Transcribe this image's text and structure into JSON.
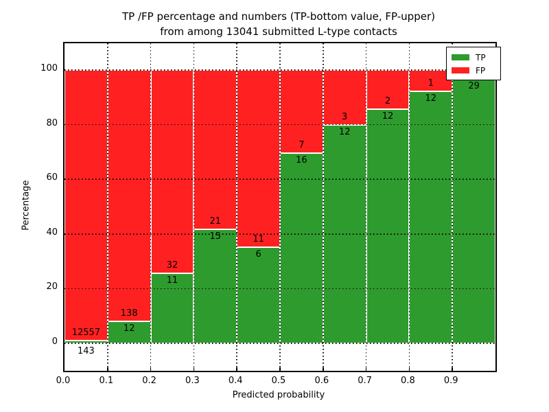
{
  "figure": {
    "title_line1": "TP /FP percentage and numbers (TP-bottom value, FP-upper)",
    "title_line2": "from among 13041 submitted L-type contacts"
  },
  "axes": {
    "xlabel": "Predicted probability",
    "ylabel": "Percentage",
    "xticks": [
      "0.0",
      "0.1",
      "0.2",
      "0.3",
      "0.4",
      "0.5",
      "0.6",
      "0.7",
      "0.8",
      "0.9"
    ],
    "yticks": [
      "0",
      "20",
      "40",
      "60",
      "80",
      "100"
    ]
  },
  "legend": {
    "entries": [
      {
        "label": "TP",
        "color": "#2e9b2e"
      },
      {
        "label": "FP",
        "color": "#ff2121"
      }
    ]
  },
  "chart_data": {
    "type": "bar",
    "subtype": "stacked-percentage",
    "title": "TP /FP percentage and numbers (TP-bottom value, FP-upper) from among 13041 submitted L-type contacts",
    "xlabel": "Predicted probability",
    "ylabel": "Percentage",
    "total_submitted_contacts": 13041,
    "bin_width": 0.1,
    "xlim": [
      0.0,
      1.0
    ],
    "ylim_ticks": [
      0,
      100
    ],
    "grid": "dotted",
    "legend_position": "upper right",
    "colors": {
      "tp": "#2e9b2e",
      "fp": "#ff2121",
      "bar_edge": "#ffffff"
    },
    "bins": [
      {
        "x_start": 0.0,
        "tp": 143,
        "fp": 12557,
        "tp_label": "143",
        "fp_label": "12557",
        "tp_label_below_axis": true
      },
      {
        "x_start": 0.1,
        "tp": 12,
        "fp": 138,
        "tp_label": "12",
        "fp_label": "138",
        "tp_label_below_axis": false
      },
      {
        "x_start": 0.2,
        "tp": 11,
        "fp": 32,
        "tp_label": "11",
        "fp_label": "32",
        "tp_label_below_axis": false
      },
      {
        "x_start": 0.3,
        "tp": 15,
        "fp": 21,
        "tp_label": "15",
        "fp_label": "21",
        "tp_label_below_axis": false
      },
      {
        "x_start": 0.4,
        "tp": 6,
        "fp": 11,
        "tp_label": "6",
        "fp_label": "11",
        "tp_label_below_axis": false
      },
      {
        "x_start": 0.5,
        "tp": 16,
        "fp": 7,
        "tp_label": "16",
        "fp_label": "7",
        "tp_label_below_axis": false
      },
      {
        "x_start": 0.6,
        "tp": 12,
        "fp": 3,
        "tp_label": "12",
        "fp_label": "3",
        "tp_label_below_axis": false
      },
      {
        "x_start": 0.7,
        "tp": 12,
        "fp": 2,
        "tp_label": "12",
        "fp_label": "2",
        "tp_label_below_axis": false
      },
      {
        "x_start": 0.8,
        "tp": 12,
        "fp": 1,
        "tp_label": "12",
        "fp_label": "1",
        "tp_label_below_axis": false
      },
      {
        "x_start": 0.9,
        "tp": 29,
        "fp": 1,
        "tp_label": "29",
        "fp_label": "",
        "tp_label_below_axis": false
      }
    ]
  }
}
